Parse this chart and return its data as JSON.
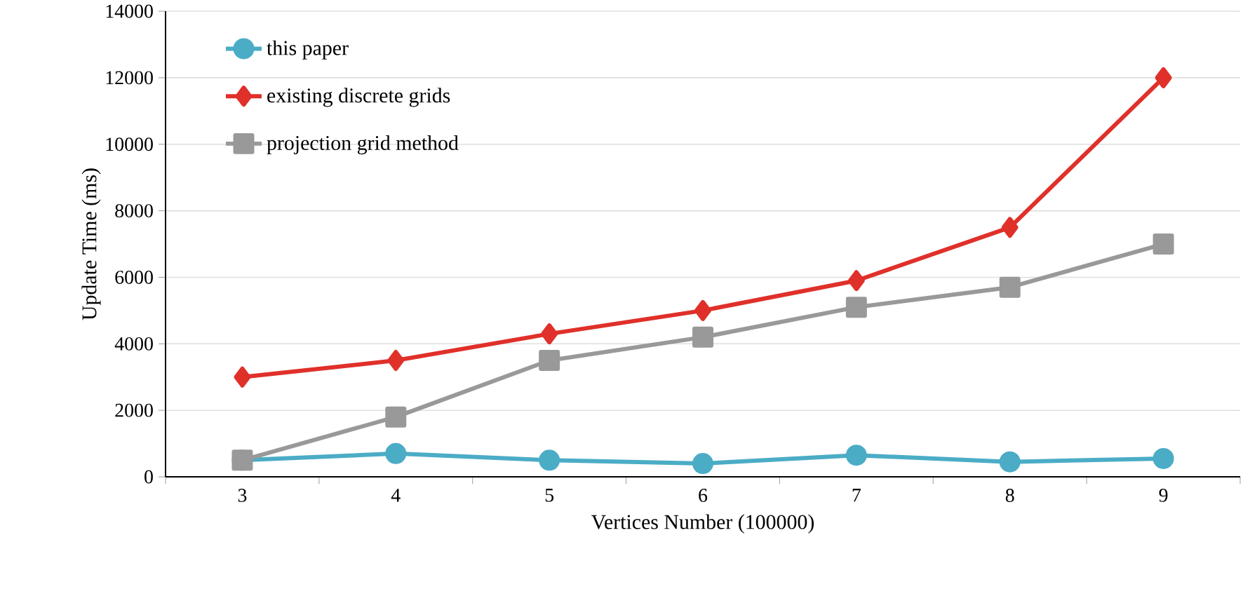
{
  "chart_data": {
    "type": "line",
    "xlabel": "Vertices Number (100000)",
    "ylabel": "Update Time (ms)",
    "categories": [
      "3",
      "4",
      "5",
      "6",
      "7",
      "8",
      "9"
    ],
    "series": [
      {
        "name": "this paper",
        "color": "#4bacc6",
        "marker": "circle",
        "values": [
          500,
          700,
          500,
          400,
          650,
          450,
          550
        ]
      },
      {
        "name": "existing discrete grids",
        "color": "#e0302a",
        "marker": "diamond",
        "values": [
          3000,
          3500,
          4300,
          5000,
          5900,
          7500,
          12000
        ]
      },
      {
        "name": "projection grid method",
        "color": "#999999",
        "marker": "square",
        "values": [
          500,
          1800,
          3500,
          4200,
          5100,
          5700,
          7000
        ]
      }
    ],
    "ylim": [
      0,
      14000
    ],
    "yticks": [
      0,
      2000,
      4000,
      6000,
      8000,
      10000,
      12000,
      14000
    ],
    "grid": "y",
    "legend": "top left",
    "line_style": "solid"
  }
}
